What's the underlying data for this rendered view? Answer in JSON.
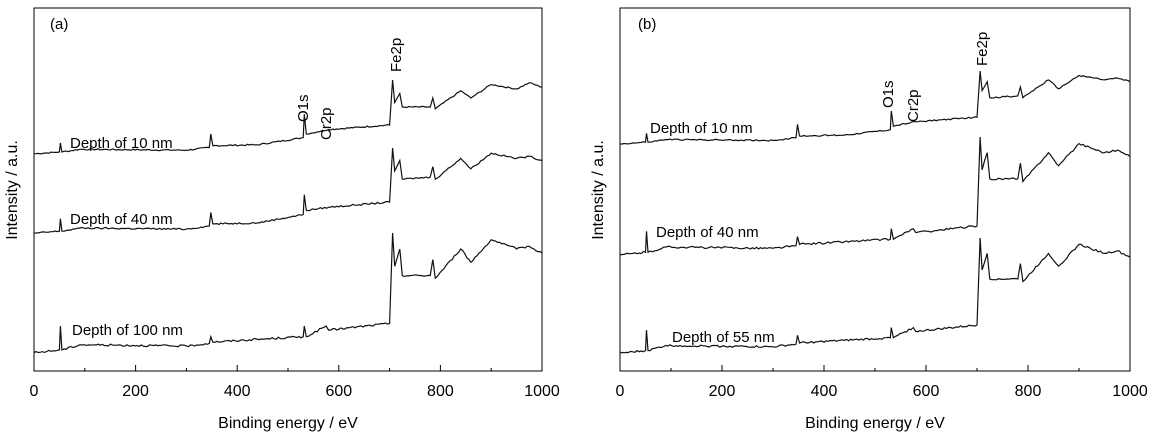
{
  "chart_data": [
    {
      "type": "line",
      "panel_label": "(a)",
      "xlabel": "Binding energy / eV",
      "ylabel": "Intensity / a.u.",
      "xlim": [
        0,
        1000
      ],
      "xticks": [
        0,
        200,
        400,
        600,
        800,
        1000
      ],
      "yticks_shown": false,
      "grid": false,
      "peak_labels": [
        "O1s",
        "Cr2p",
        "Fe2p"
      ],
      "series": [
        {
          "name": "Depth of 10 nm",
          "x": [
            0,
            50,
            52,
            55,
            90,
            300,
            345,
            348,
            352,
            440,
            530,
            532,
            536,
            580,
            700,
            706,
            710,
            720,
            725,
            780,
            785,
            790,
            840,
            860,
            900,
            950,
            975,
            1000
          ],
          "y": [
            0.18,
            0.2,
            0.3,
            0.2,
            0.23,
            0.22,
            0.25,
            0.4,
            0.27,
            0.28,
            0.36,
            0.62,
            0.4,
            0.45,
            0.5,
            1.0,
            0.75,
            0.85,
            0.7,
            0.7,
            0.8,
            0.68,
            0.88,
            0.8,
            0.95,
            0.9,
            0.97,
            0.92
          ]
        },
        {
          "name": "Depth of 40 nm",
          "x": [
            0,
            50,
            52,
            55,
            90,
            300,
            345,
            348,
            352,
            440,
            530,
            532,
            536,
            580,
            700,
            706,
            710,
            720,
            725,
            780,
            785,
            790,
            840,
            860,
            900,
            950,
            975,
            1000
          ],
          "y": [
            0.18,
            0.2,
            0.32,
            0.2,
            0.23,
            0.22,
            0.25,
            0.38,
            0.27,
            0.28,
            0.36,
            0.55,
            0.4,
            0.43,
            0.48,
            1.0,
            0.78,
            0.88,
            0.7,
            0.72,
            0.82,
            0.7,
            0.9,
            0.8,
            0.95,
            0.9,
            0.92,
            0.88
          ]
        },
        {
          "name": "Depth of 100 nm",
          "x": [
            0,
            50,
            52,
            55,
            90,
            300,
            345,
            348,
            352,
            440,
            530,
            532,
            536,
            575,
            580,
            700,
            706,
            710,
            720,
            725,
            780,
            785,
            790,
            840,
            860,
            900,
            950,
            975,
            1000
          ],
          "y": [
            0.1,
            0.12,
            0.3,
            0.12,
            0.16,
            0.15,
            0.17,
            0.22,
            0.18,
            0.2,
            0.22,
            0.3,
            0.22,
            0.3,
            0.27,
            0.32,
            1.0,
            0.75,
            0.88,
            0.68,
            0.68,
            0.8,
            0.66,
            0.88,
            0.78,
            0.95,
            0.88,
            0.9,
            0.85
          ]
        }
      ]
    },
    {
      "type": "line",
      "panel_label": "(b)",
      "xlabel": "Binding energy / eV",
      "ylabel": "Intensity / a.u.",
      "xlim": [
        0,
        1000
      ],
      "xticks": [
        0,
        200,
        400,
        600,
        800,
        1000
      ],
      "yticks_shown": false,
      "grid": false,
      "peak_labels": [
        "O1s",
        "Cr2p",
        "Fe2p"
      ],
      "series": [
        {
          "name": "Depth of 10 nm",
          "x": [
            0,
            50,
            52,
            55,
            90,
            300,
            345,
            348,
            352,
            440,
            530,
            532,
            536,
            580,
            700,
            706,
            710,
            720,
            725,
            780,
            785,
            790,
            840,
            860,
            900,
            950,
            975,
            1000
          ],
          "y": [
            0.18,
            0.2,
            0.3,
            0.2,
            0.23,
            0.22,
            0.25,
            0.4,
            0.27,
            0.28,
            0.34,
            0.55,
            0.38,
            0.43,
            0.48,
            1.0,
            0.78,
            0.88,
            0.7,
            0.72,
            0.82,
            0.7,
            0.9,
            0.8,
            0.95,
            0.9,
            0.92,
            0.88
          ]
        },
        {
          "name": "Depth of 40 nm",
          "x": [
            0,
            50,
            52,
            55,
            90,
            300,
            345,
            348,
            352,
            440,
            530,
            532,
            536,
            575,
            580,
            700,
            706,
            710,
            720,
            725,
            780,
            785,
            790,
            840,
            860,
            900,
            950,
            975,
            1000
          ],
          "y": [
            0.1,
            0.12,
            0.28,
            0.12,
            0.16,
            0.15,
            0.17,
            0.24,
            0.18,
            0.2,
            0.22,
            0.3,
            0.22,
            0.3,
            0.27,
            0.32,
            1.0,
            0.75,
            0.88,
            0.68,
            0.68,
            0.8,
            0.66,
            0.88,
            0.78,
            0.95,
            0.88,
            0.9,
            0.85
          ]
        },
        {
          "name": "Depth of 55 nm",
          "x": [
            0,
            50,
            52,
            55,
            90,
            300,
            345,
            348,
            352,
            440,
            530,
            532,
            536,
            575,
            580,
            700,
            706,
            710,
            720,
            725,
            780,
            785,
            790,
            840,
            860,
            900,
            950,
            975,
            1000
          ],
          "y": [
            0.1,
            0.12,
            0.28,
            0.12,
            0.16,
            0.15,
            0.17,
            0.24,
            0.18,
            0.2,
            0.22,
            0.3,
            0.22,
            0.3,
            0.27,
            0.32,
            1.0,
            0.75,
            0.88,
            0.68,
            0.68,
            0.8,
            0.66,
            0.88,
            0.78,
            0.95,
            0.88,
            0.9,
            0.85
          ]
        }
      ]
    }
  ]
}
